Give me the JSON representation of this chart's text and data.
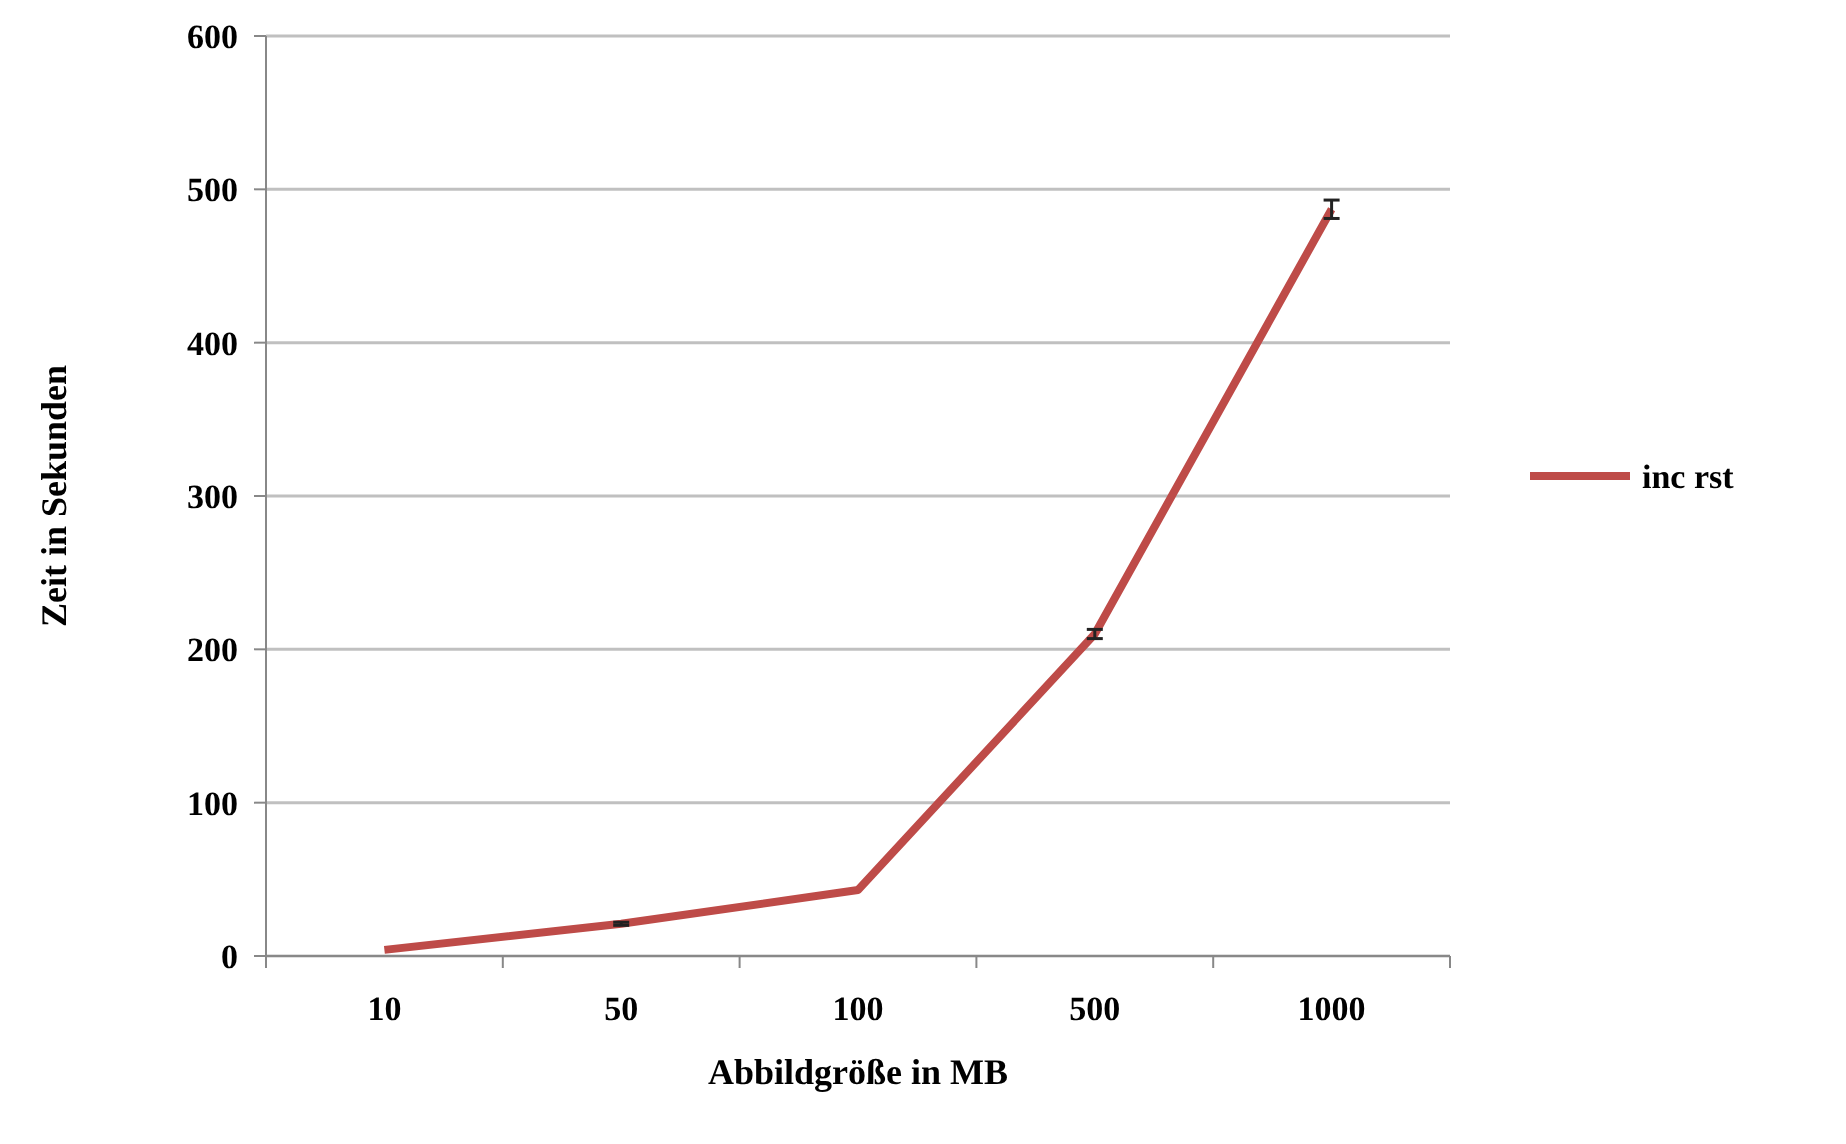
{
  "chart_data": {
    "type": "line",
    "xlabel": "Abbildgröße in MB",
    "ylabel": "Zeit in Sekunden",
    "categories": [
      "10",
      "50",
      "100",
      "500",
      "1000"
    ],
    "series": [
      {
        "name": "inc rst",
        "color": "#be4b48",
        "values": [
          4,
          21,
          43,
          210,
          487
        ],
        "errors": [
          null,
          1,
          null,
          3,
          6
        ]
      }
    ],
    "ylim": [
      0,
      600
    ],
    "yticks": [
      0,
      100,
      200,
      300,
      400,
      500,
      600
    ],
    "grid": "y",
    "legend": "right",
    "marker": "none",
    "line_style": "solid"
  }
}
